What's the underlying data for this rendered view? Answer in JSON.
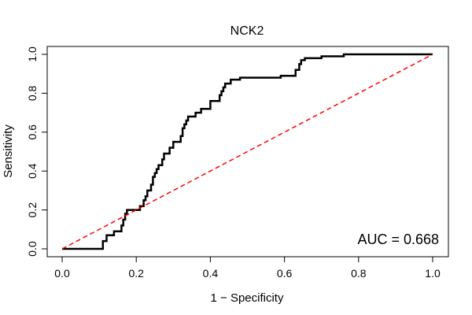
{
  "chart_data": {
    "type": "line",
    "title": "NCK2",
    "xlabel": "1 − Specificity",
    "ylabel": "Sensitivity",
    "xlim": [
      0,
      1
    ],
    "ylim": [
      0,
      1
    ],
    "xticks": [
      "0.0",
      "0.2",
      "0.4",
      "0.6",
      "0.8",
      "1.0"
    ],
    "yticks": [
      "0.0",
      "0.2",
      "0.4",
      "0.6",
      "0.8",
      "1.0"
    ],
    "annotation": "AUC = 0.668",
    "grid": false,
    "series": [
      {
        "style": "solid",
        "color": "#000000",
        "x": [
          0.0,
          0.11,
          0.11,
          0.12,
          0.12,
          0.14,
          0.14,
          0.16,
          0.16,
          0.165,
          0.165,
          0.17,
          0.17,
          0.175,
          0.175,
          0.21,
          0.21,
          0.22,
          0.22,
          0.225,
          0.225,
          0.23,
          0.23,
          0.24,
          0.24,
          0.245,
          0.245,
          0.25,
          0.25,
          0.255,
          0.255,
          0.26,
          0.26,
          0.27,
          0.27,
          0.275,
          0.275,
          0.29,
          0.29,
          0.3,
          0.3,
          0.32,
          0.32,
          0.325,
          0.325,
          0.33,
          0.33,
          0.335,
          0.335,
          0.34,
          0.34,
          0.36,
          0.36,
          0.375,
          0.375,
          0.4,
          0.4,
          0.425,
          0.425,
          0.43,
          0.43,
          0.435,
          0.435,
          0.44,
          0.44,
          0.455,
          0.455,
          0.48,
          0.48,
          0.59,
          0.59,
          0.63,
          0.63,
          0.64,
          0.64,
          0.645,
          0.645,
          0.655,
          0.655,
          0.7,
          0.7,
          0.76,
          0.76,
          1.0
        ],
        "y": [
          0.0,
          0.0,
          0.04,
          0.04,
          0.07,
          0.07,
          0.09,
          0.09,
          0.12,
          0.12,
          0.15,
          0.15,
          0.18,
          0.18,
          0.2,
          0.2,
          0.22,
          0.22,
          0.25,
          0.25,
          0.27,
          0.27,
          0.3,
          0.3,
          0.33,
          0.33,
          0.37,
          0.37,
          0.39,
          0.39,
          0.41,
          0.41,
          0.43,
          0.43,
          0.46,
          0.46,
          0.49,
          0.49,
          0.52,
          0.52,
          0.55,
          0.55,
          0.58,
          0.58,
          0.62,
          0.62,
          0.64,
          0.64,
          0.66,
          0.66,
          0.68,
          0.68,
          0.7,
          0.7,
          0.72,
          0.72,
          0.76,
          0.76,
          0.79,
          0.79,
          0.81,
          0.81,
          0.83,
          0.83,
          0.85,
          0.85,
          0.87,
          0.87,
          0.88,
          0.88,
          0.89,
          0.89,
          0.92,
          0.92,
          0.95,
          0.95,
          0.97,
          0.97,
          0.98,
          0.98,
          0.99,
          0.99,
          1.0,
          1.0
        ]
      },
      {
        "style": "dashed",
        "color": "#ff0000",
        "x": [
          0.0,
          1.0
        ],
        "y": [
          0.0,
          1.0
        ]
      }
    ]
  }
}
